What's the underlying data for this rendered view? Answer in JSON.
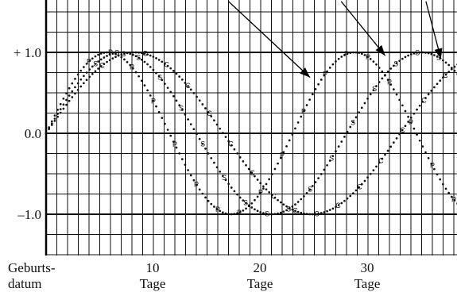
{
  "chart_data": {
    "type": "line",
    "title": "",
    "xlabel": "",
    "ylabel": "",
    "xlim": [
      0,
      38.6
    ],
    "ylim": [
      -1.5,
      1.5
    ],
    "x_origin_label": [
      "Geburts-",
      "datum"
    ],
    "x_ticks": [
      {
        "x": 10,
        "line1": "10",
        "line2": "Tage"
      },
      {
        "x": 20,
        "line1": "20",
        "line2": "Tage"
      },
      {
        "x": 30,
        "line1": "30",
        "line2": "Tage"
      }
    ],
    "y_ticks": [
      {
        "y": 1.0,
        "label": "+ 1.0"
      },
      {
        "y": 0.0,
        "label": "0.0"
      },
      {
        "y": -1.0,
        "label": "–1.0"
      }
    ],
    "grid": true,
    "series": [
      {
        "marker": "P",
        "period_days": 23,
        "phase": 0
      },
      {
        "marker": "S",
        "period_days": 28,
        "phase": 0
      },
      {
        "marker": "C",
        "period_days": 33,
        "phase": 0
      }
    ],
    "annotations": [
      {
        "type": "arrow",
        "from": [
          17,
          1.63
        ],
        "to": [
          24.6,
          0.69
        ]
      },
      {
        "type": "arrow",
        "from": [
          27.5,
          1.63
        ],
        "to": [
          31.6,
          0.96
        ]
      },
      {
        "type": "arrow",
        "from": [
          35.4,
          1.63
        ],
        "to": [
          36.8,
          0.92
        ]
      }
    ]
  }
}
